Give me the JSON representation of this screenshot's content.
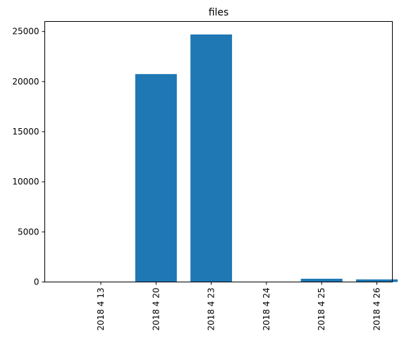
{
  "chart_data": {
    "type": "bar",
    "title": "files",
    "xlabel": "",
    "ylabel": "",
    "categories": [
      "2018 4 13",
      "2018 4 20",
      "2018 4 23",
      "2018 4 24",
      "2018 4 25",
      "2018 4 26"
    ],
    "values": [
      0,
      20750,
      24700,
      0,
      320,
      260
    ],
    "ylim": [
      0,
      26000
    ],
    "yticks": [
      0,
      5000,
      10000,
      15000,
      20000,
      25000
    ],
    "bar_color": "#1f77b4",
    "grid": false,
    "legend": "none"
  }
}
